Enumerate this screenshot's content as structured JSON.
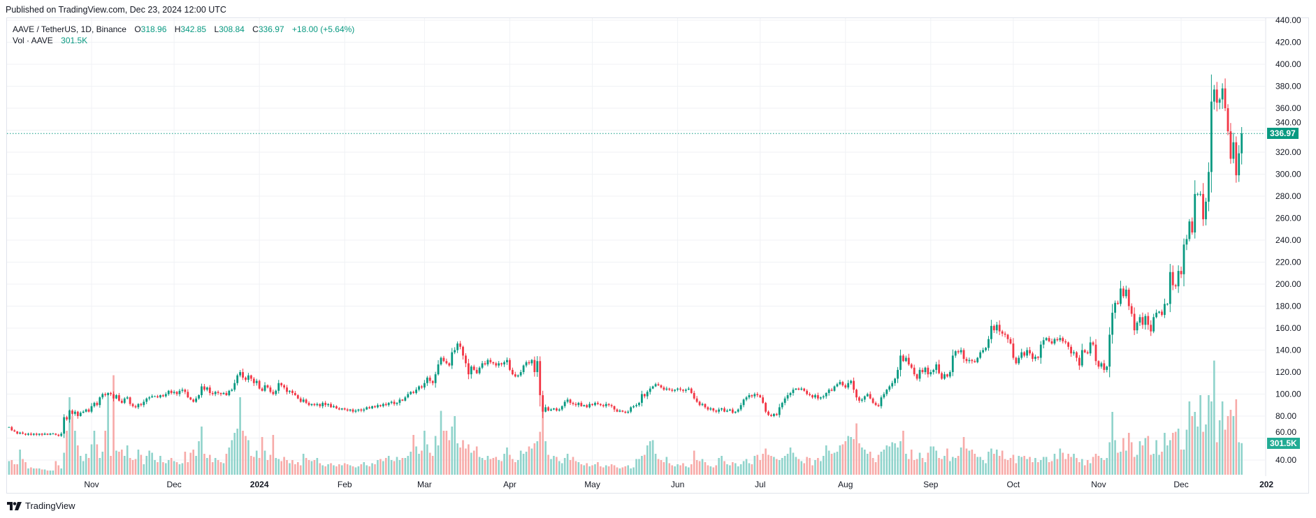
{
  "header": {
    "published": "Published on TradingView.com, Dec 23, 2024 12:00 UTC"
  },
  "legend": {
    "symbol": "AAVE / TetherUS, 1D, Binance",
    "o_label": "O",
    "o": "318.96",
    "h_label": "H",
    "h": "342.85",
    "l_label": "L",
    "l": "308.84",
    "c_label": "C",
    "c": "336.97",
    "change": "+18.00 (+5.64%)",
    "vol_label": "Vol · AAVE",
    "vol": "301.5K"
  },
  "badges": {
    "price": "336.97",
    "volume": "301.5K"
  },
  "footer": {
    "brand": "TradingView"
  },
  "colors": {
    "up": "#089981",
    "down": "#f23645",
    "vol_up": "#8fd3cb",
    "vol_down": "#f7aaa8",
    "grid": "#f0f2f5",
    "badge_price": "#089981",
    "badge_vol": "#22ab94"
  },
  "chart_data": {
    "type": "candlestick",
    "title": "AAVE / TetherUS, 1D, Binance",
    "start_date": "2023-10-02",
    "interval": "1D",
    "ylim": [
      40,
      440
    ],
    "y_ticks": [
      "40.00",
      "60.00",
      "80.00",
      "100.00",
      "120.00",
      "140.00",
      "160.00",
      "180.00",
      "200.00",
      "220.00",
      "240.00",
      "260.00",
      "280.00",
      "300.00",
      "320.00",
      "340.00",
      "360.00",
      "380.00",
      "400.00",
      "420.00",
      "440.00"
    ],
    "x_ticks": [
      {
        "day": 30,
        "label": "Nov"
      },
      {
        "day": 60,
        "label": "Dec"
      },
      {
        "day": 91,
        "label": "2024",
        "bold": true
      },
      {
        "day": 122,
        "label": "Feb"
      },
      {
        "day": 151,
        "label": "Mar"
      },
      {
        "day": 182,
        "label": "Apr"
      },
      {
        "day": 212,
        "label": "May"
      },
      {
        "day": 243,
        "label": "Jun"
      },
      {
        "day": 273,
        "label": "Jul"
      },
      {
        "day": 304,
        "label": "Aug"
      },
      {
        "day": 335,
        "label": "Sep"
      },
      {
        "day": 365,
        "label": "Oct"
      },
      {
        "day": 396,
        "label": "Nov"
      },
      {
        "day": 426,
        "label": "Dec"
      },
      {
        "day": 457,
        "label": "202",
        "bold": true
      }
    ],
    "last": {
      "open": 318.96,
      "high": 342.85,
      "low": 308.84,
      "close": 336.97,
      "volume_k": 301.5
    },
    "first_open": 70,
    "close": [
      70,
      67,
      66,
      64,
      65,
      64,
      63,
      64,
      63,
      64,
      63,
      64,
      63,
      64,
      63,
      64,
      64,
      63,
      62,
      64,
      79,
      77,
      85,
      82,
      84,
      80,
      83,
      84,
      86,
      84,
      89,
      92,
      90,
      97,
      100,
      99,
      101,
      100,
      96,
      99,
      94,
      92,
      96,
      97,
      91,
      89,
      88,
      91,
      90,
      93,
      96,
      97,
      98,
      98,
      97,
      99,
      98,
      100,
      103,
      101,
      102,
      100,
      103,
      104,
      102,
      97,
      95,
      93,
      96,
      99,
      107,
      104,
      106,
      101,
      100,
      102,
      101,
      100,
      101,
      99,
      103,
      104,
      110,
      117,
      120,
      115,
      113,
      117,
      114,
      110,
      112,
      105,
      103,
      108,
      106,
      102,
      100,
      103,
      110,
      108,
      106,
      102,
      103,
      101,
      99,
      96,
      93,
      95,
      92,
      90,
      91,
      90,
      91,
      89,
      92,
      90,
      91,
      88,
      89,
      87,
      86,
      87,
      86,
      85,
      86,
      84,
      85,
      86,
      85,
      86,
      88,
      87,
      89,
      88,
      90,
      89,
      91,
      90,
      92,
      93,
      91,
      92,
      95,
      94,
      97,
      100,
      102,
      101,
      104,
      107,
      106,
      110,
      115,
      112,
      110,
      118,
      127,
      133,
      130,
      128,
      126,
      138,
      140,
      146,
      143,
      135,
      128,
      118,
      125,
      122,
      119,
      124,
      128,
      127,
      131,
      129,
      128,
      126,
      128,
      127,
      129,
      131,
      122,
      118,
      116,
      117,
      120,
      126,
      129,
      128,
      131,
      120,
      130,
      99,
      84,
      88,
      85,
      86,
      87,
      85,
      86,
      89,
      93,
      95,
      92,
      91,
      90,
      92,
      89,
      90,
      88,
      91,
      90,
      92,
      91,
      90,
      89,
      91,
      90,
      89,
      86,
      84,
      85,
      84,
      83,
      84,
      88,
      89,
      90,
      92,
      100,
      98,
      102,
      105,
      107,
      109,
      108,
      106,
      104,
      105,
      104,
      103,
      104,
      105,
      104,
      103,
      104,
      105,
      101,
      96,
      93,
      90,
      91,
      88,
      86,
      87,
      85,
      84,
      86,
      87,
      84,
      85,
      86,
      83,
      84,
      86,
      90,
      95,
      97,
      99,
      98,
      100,
      99,
      97,
      92,
      84,
      81,
      80,
      82,
      81,
      88,
      92,
      96,
      99,
      101,
      104,
      105,
      104,
      105,
      103,
      100,
      99,
      97,
      99,
      96,
      97,
      98,
      101,
      104,
      103,
      107,
      109,
      111,
      108,
      106,
      110,
      112,
      104,
      97,
      94,
      95,
      98,
      100,
      96,
      92,
      90,
      89,
      97,
      100,
      104,
      107,
      110,
      114,
      122,
      135,
      130,
      133,
      127,
      124,
      118,
      114,
      122,
      120,
      124,
      118,
      120,
      122,
      127,
      119,
      114,
      118,
      116,
      120,
      135,
      139,
      138,
      140,
      132,
      130,
      131,
      130,
      129,
      133,
      138,
      140,
      142,
      150,
      162,
      158,
      163,
      157,
      155,
      154,
      150,
      146,
      133,
      128,
      133,
      138,
      135,
      140,
      137,
      132,
      134,
      133,
      145,
      149,
      151,
      148,
      146,
      150,
      149,
      151,
      148,
      147,
      143,
      137,
      138,
      133,
      126,
      140,
      138,
      137,
      147,
      145,
      130,
      125,
      128,
      122,
      125,
      154,
      174,
      183,
      182,
      196,
      189,
      195,
      180,
      173,
      158,
      165,
      170,
      163,
      171,
      163,
      157,
      170,
      174,
      175,
      172,
      182,
      182,
      211,
      199,
      198,
      212,
      209,
      236,
      241,
      257,
      247,
      282,
      282,
      282,
      259,
      275,
      302,
      366,
      377,
      365,
      368,
      378,
      360,
      339,
      314,
      329,
      299,
      318.96,
      336.97
    ],
    "volume_k": [
      130,
      140,
      100,
      100,
      240,
      150,
      120,
      60,
      70,
      60,
      60,
      60,
      50,
      50,
      40,
      40,
      40,
      130,
      90,
      60,
      210,
      420,
      740,
      560,
      420,
      280,
      180,
      130,
      200,
      160,
      290,
      420,
      290,
      160,
      220,
      420,
      740,
      180,
      950,
      230,
      220,
      240,
      180,
      280,
      160,
      140,
      150,
      240,
      190,
      100,
      180,
      230,
      210,
      140,
      120,
      180,
      120,
      110,
      140,
      160,
      130,
      120,
      100,
      110,
      220,
      120,
      210,
      240,
      180,
      320,
      460,
      200,
      160,
      190,
      120,
      160,
      140,
      120,
      110,
      200,
      260,
      330,
      400,
      440,
      740,
      420,
      370,
      330,
      180,
      170,
      230,
      160,
      360,
      230,
      140,
      190,
      380,
      160,
      150,
      130,
      170,
      140,
      110,
      140,
      100,
      120,
      90,
      200,
      160,
      140,
      130,
      140,
      160,
      110,
      90,
      80,
      100,
      110,
      90,
      80,
      100,
      90,
      110,
      100,
      90,
      80,
      70,
      80,
      100,
      120,
      90,
      80,
      110,
      100,
      140,
      150,
      130,
      160,
      180,
      140,
      130,
      170,
      140,
      160,
      160,
      180,
      220,
      380,
      270,
      200,
      230,
      420,
      290,
      210,
      180,
      370,
      280,
      610,
      420,
      420,
      330,
      460,
      560,
      300,
      260,
      330,
      250,
      290,
      210,
      230,
      270,
      170,
      160,
      140,
      180,
      150,
      160,
      170,
      140,
      130,
      200,
      260,
      190,
      150,
      120,
      140,
      230,
      200,
      220,
      270,
      250,
      300,
      320,
      410,
      680,
      320,
      190,
      150,
      180,
      170,
      130,
      110,
      160,
      200,
      140,
      170,
      130,
      120,
      100,
      90,
      110,
      80,
      90,
      100,
      120,
      80,
      70,
      90,
      80,
      100,
      90,
      70,
      60,
      70,
      80,
      90,
      60,
      70,
      150,
      150,
      180,
      190,
      280,
      320,
      330,
      200,
      150,
      140,
      120,
      170,
      110,
      90,
      80,
      100,
      90,
      110,
      80,
      70,
      100,
      230,
      140,
      130,
      150,
      120,
      90,
      80,
      70,
      90,
      160,
      180,
      130,
      100,
      90,
      120,
      110,
      80,
      100,
      130,
      150,
      110,
      100,
      180,
      190,
      140,
      200,
      250,
      190,
      180,
      170,
      150,
      140,
      160,
      180,
      200,
      260,
      210,
      170,
      150,
      130,
      110,
      170,
      160,
      90,
      140,
      160,
      130,
      180,
      280,
      230,
      200,
      210,
      220,
      280,
      290,
      320,
      370,
      360,
      340,
      490,
      300,
      260,
      240,
      200,
      220,
      160,
      120,
      190,
      220,
      240,
      280,
      270,
      310,
      300,
      260,
      320,
      420,
      200,
      150,
      240,
      140,
      150,
      210,
      160,
      120,
      210,
      270,
      270,
      230,
      160,
      150,
      180,
      250,
      130,
      170,
      160,
      180,
      260,
      360,
      250,
      230,
      240,
      200,
      170,
      170,
      140,
      110,
      220,
      250,
      200,
      240,
      180,
      230,
      150,
      140,
      160,
      190,
      110,
      180,
      170,
      180,
      150,
      170,
      120,
      160,
      120,
      140,
      170,
      170,
      120,
      130,
      200,
      150,
      250,
      210,
      150,
      200,
      170,
      200,
      160,
      120,
      150,
      90,
      140,
      110,
      170,
      200,
      180,
      160,
      140,
      160,
      310,
      600,
      330,
      210,
      220,
      350,
      230,
      400,
      310,
      170,
      190,
      320,
      280,
      350,
      370,
      190,
      200,
      330,
      190,
      220,
      400,
      280,
      330,
      400,
      410,
      440,
      240,
      240,
      430,
      700,
      560,
      600,
      460,
      760,
      410,
      480,
      760,
      700,
      1090,
      310,
      520,
      700,
      430,
      560,
      620,
      560,
      720,
      310,
      301.5
    ]
  }
}
